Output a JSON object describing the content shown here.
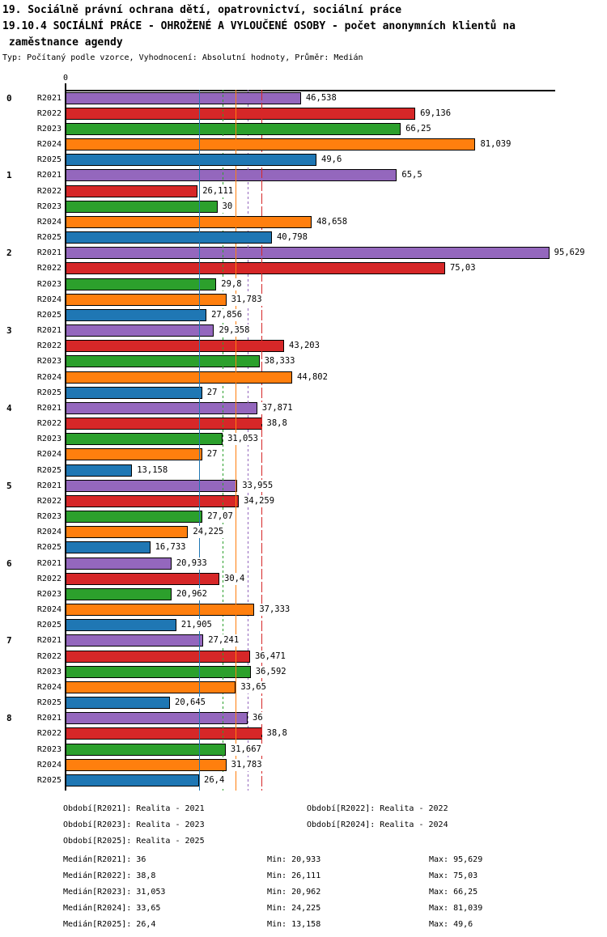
{
  "title": {
    "line1": "19. Sociálně právní ochrana dětí, opatrovnictví, sociální práce",
    "line2": "19.10.4 SOCIÁLNÍ PRÁCE - OHROŽENÉ A VYLOUČENÉ OSOBY - počet anonymních klientů na",
    "line3": " zaměstnance agendy",
    "meta": "Typ: Počítaný podle vzorce, Vyhodnocení: Absolutní hodnoty, Průměr: Medián"
  },
  "axis": {
    "zero_tick_label": "0"
  },
  "chart_data": {
    "type": "bar",
    "orientation": "horizontal",
    "title": "19.10.4 SOCIÁLNÍ PRÁCE - OHROŽENÉ A VYLOUČENÉ OSOBY - počet anonymních klientů na zaměstnance agendy",
    "xlim": [
      0,
      96.8
    ],
    "grid": false,
    "legend_position": "bottom",
    "categories": [
      "0",
      "1",
      "2",
      "3",
      "4",
      "5",
      "6",
      "7",
      "8"
    ],
    "series": [
      {
        "name": "R2021",
        "legend": "Realita - 2021",
        "color": "#9467bd",
        "median": 36,
        "median_line_style": "dashed",
        "values": [
          46.538,
          65.5,
          95.629,
          29.358,
          37.871,
          33.955,
          20.933,
          27.241,
          36
        ],
        "value_labels": [
          "46,538",
          "65,5",
          "95,629",
          "29,358",
          "37,871",
          "33,955",
          "20,933",
          "27,241",
          "36"
        ]
      },
      {
        "name": "R2022",
        "legend": "Realita - 2022",
        "color": "#d62728",
        "median": 38.8,
        "median_line_style": "long-dash",
        "values": [
          69.136,
          26.111,
          75.03,
          43.203,
          38.8,
          34.259,
          30.4,
          36.471,
          38.8
        ],
        "value_labels": [
          "69,136",
          "26,111",
          "75,03",
          "43,203",
          "38,8",
          "34,259",
          "30,4",
          "36,471",
          "38,8"
        ]
      },
      {
        "name": "R2023",
        "legend": "Realita - 2023",
        "color": "#2ca02c",
        "median": 31.053,
        "median_line_style": "dashed",
        "values": [
          66.25,
          30,
          29.8,
          38.333,
          31.053,
          27.07,
          20.962,
          36.592,
          31.667
        ],
        "value_labels": [
          "66,25",
          "30",
          "29,8",
          "38,333",
          "31,053",
          "27,07",
          "20,962",
          "36,592",
          "31,667"
        ]
      },
      {
        "name": "R2024",
        "legend": "Realita - 2024",
        "color": "#ff7f0e",
        "median": 33.65,
        "median_line_style": "solid",
        "values": [
          81.039,
          48.658,
          31.783,
          44.802,
          27,
          24.225,
          37.333,
          33.65,
          31.783
        ],
        "value_labels": [
          "81,039",
          "48,658",
          "31,783",
          "44,802",
          "27",
          "24,225",
          "37,333",
          "33,65",
          "31,783"
        ]
      },
      {
        "name": "R2025",
        "legend": "Realita - 2025",
        "color": "#1f77b4",
        "median": 26.4,
        "median_line_style": "solid",
        "values": [
          49.6,
          40.798,
          27.856,
          27,
          13.158,
          16.733,
          21.905,
          20.645,
          26.4
        ],
        "value_labels": [
          "49,6",
          "40,798",
          "27,856",
          "27",
          "13,158",
          "16,733",
          "21,905",
          "20,645",
          "26,4"
        ]
      }
    ]
  },
  "legend": {
    "items": [
      "Období[R2021]: Realita - 2021",
      "Období[R2022]: Realita - 2022",
      "Období[R2023]: Realita - 2023",
      "Období[R2024]: Realita - 2024",
      "Období[R2025]: Realita - 2025"
    ]
  },
  "stats": {
    "rows": [
      {
        "key": "R2021",
        "median": "Medián[R2021]: 36",
        "min": "Min: 20,933",
        "max": "Max: 95,629"
      },
      {
        "key": "R2022",
        "median": "Medián[R2022]: 38,8",
        "min": "Min: 26,111",
        "max": "Max: 75,03"
      },
      {
        "key": "R2023",
        "median": "Medián[R2023]: 31,053",
        "min": "Min: 20,962",
        "max": "Max: 66,25"
      },
      {
        "key": "R2024",
        "median": "Medián[R2024]: 33,65",
        "min": "Min: 24,225",
        "max": "Max: 81,039"
      },
      {
        "key": "R2025",
        "median": "Medián[R2025]: 26,4",
        "min": "Min: 13,158",
        "max": "Max: 49,6"
      }
    ]
  }
}
